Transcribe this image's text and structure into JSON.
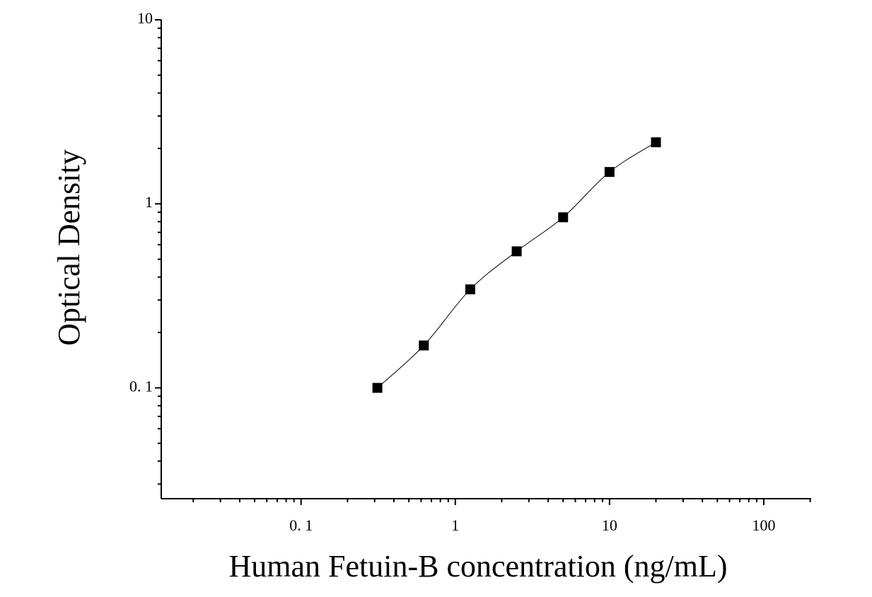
{
  "chart_data": {
    "type": "scatter",
    "xlabel": "Human Fetuin-B concentration (ng/mL)",
    "ylabel": "Optical Density",
    "xscale": "log",
    "yscale": "log",
    "xlim": [
      0.0124,
      203
    ],
    "ylim": [
      0.025,
      10
    ],
    "xticks": [
      {
        "value": 0.1,
        "label": "0. 1"
      },
      1,
      10,
      100
    ],
    "yticks": [
      {
        "value": 0.1,
        "label": "0. 1"
      },
      1,
      10
    ],
    "grid": false,
    "series": [
      {
        "color": "#000000",
        "marker": "square",
        "line": true,
        "x": [
          0.3125,
          0.625,
          1.25,
          2.5,
          5,
          10,
          20
        ],
        "values": [
          0.1,
          0.17,
          0.343,
          0.552,
          0.845,
          1.49,
          2.16
        ]
      }
    ]
  }
}
